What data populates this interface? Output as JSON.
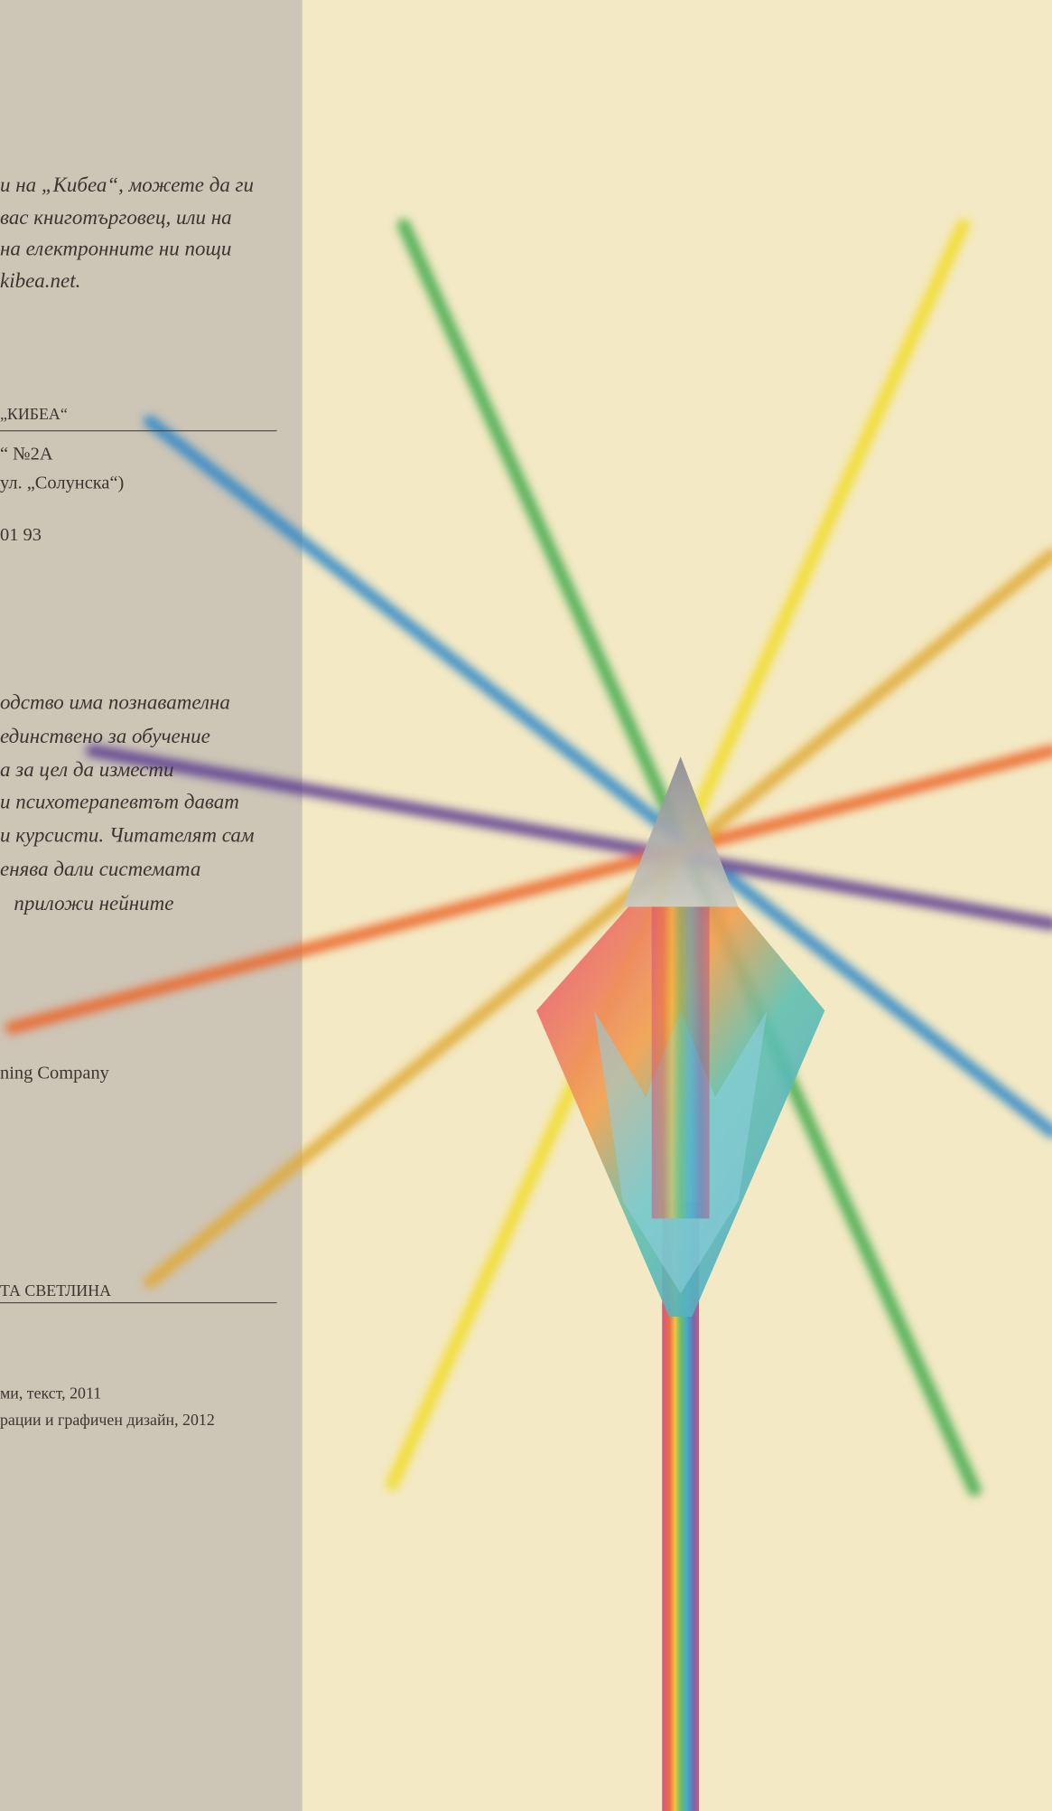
{
  "contact": {
    "lines": [
      "и на „Кибеа“, можете да ги",
      "вас книготърговец, или на",
      "на електронните ни пощи",
      "kibea.net."
    ]
  },
  "publisher": {
    "heading": "„КИБЕА“",
    "lines": [
      "“ №2А",
      "ул. „Солунска“)",
      "01 93"
    ]
  },
  "disclaimer": {
    "lines": [
      "одство има познавателна",
      "единствено за обучение",
      "а за цел да измести",
      "и психотерапевтът дават",
      "и курсисти. Читателят сам",
      "енява дали системата",
      "приложи нейните"
    ]
  },
  "rights": {
    "line": "ning Company"
  },
  "title_section": {
    "heading": "ТА СВЕТЛИНА",
    "lines": [
      "ми, текст, 2011",
      "рации и графичен дизайн, 2012"
    ]
  }
}
